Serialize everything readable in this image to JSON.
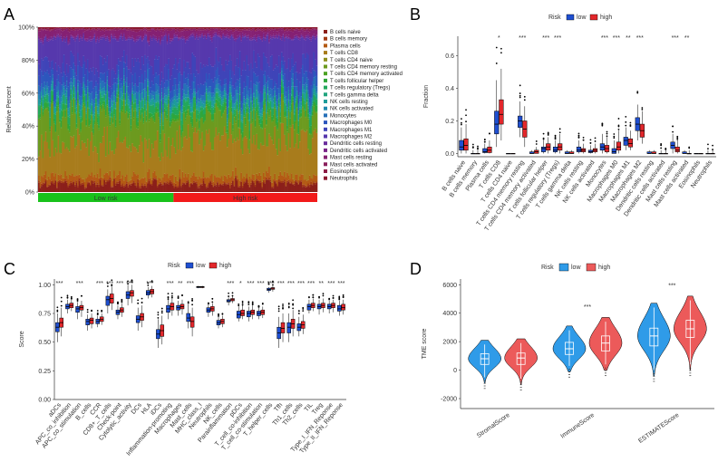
{
  "colors": {
    "low": "#1f4fd1",
    "high": "#e3272b",
    "low_violin": "#2f9be8",
    "high_violin": "#ec5a5a",
    "low_bar": "#19c21b",
    "high_bar": "#f21a1a"
  },
  "chart_data": [
    {
      "panel": "A",
      "type": "stacked-bar",
      "ylabel": "Relative Percent",
      "yticks": [
        "0%",
        "20%",
        "40%",
        "60%",
        "80%",
        "100%"
      ],
      "groups": [
        "Low risk",
        "High risk"
      ],
      "legend": [
        {
          "name": "B cells naive",
          "color": "#8b1f1a"
        },
        {
          "name": "B cells memory",
          "color": "#a23a15"
        },
        {
          "name": "Plasma cells",
          "color": "#b35a14"
        },
        {
          "name": "T cells CD8",
          "color": "#a87c1c"
        },
        {
          "name": "T cells CD4 naive",
          "color": "#8d8f1d"
        },
        {
          "name": "T cells CD4 memory resting",
          "color": "#6c9a1f"
        },
        {
          "name": "T cells CD4 memory activated",
          "color": "#4ca223"
        },
        {
          "name": "T cells follicular helper",
          "color": "#2fa63a"
        },
        {
          "name": "T cells regulatory (Tregs)",
          "color": "#23a85c"
        },
        {
          "name": "T cells gamma delta",
          "color": "#20a47e"
        },
        {
          "name": "NK cells resting",
          "color": "#1e9c9a"
        },
        {
          "name": "NK cells activated",
          "color": "#2189ad"
        },
        {
          "name": "Monocytes",
          "color": "#2670b8"
        },
        {
          "name": "Macrophages M0",
          "color": "#2d56bd"
        },
        {
          "name": "Macrophages M1",
          "color": "#3f44b8"
        },
        {
          "name": "Macrophages M2",
          "color": "#5638ad"
        },
        {
          "name": "Dendritic cells resting",
          "color": "#6a2d9c"
        },
        {
          "name": "Dendritic cells activated",
          "color": "#7a2588"
        },
        {
          "name": "Mast cells resting",
          "color": "#852173"
        },
        {
          "name": "Mast cells activated",
          "color": "#8a1f5c"
        },
        {
          "name": "Eosinophils",
          "color": "#8c1c45"
        },
        {
          "name": "Neutrophils",
          "color": "#8b1a30"
        }
      ],
      "mean_fractions": [
        0.05,
        0.01,
        0.04,
        0.2,
        0.0,
        0.18,
        0.01,
        0.03,
        0.04,
        0.01,
        0.03,
        0.02,
        0.04,
        0.06,
        0.09,
        0.16,
        0.01,
        0.01,
        0.04,
        0.01,
        0.001,
        0.01
      ]
    },
    {
      "panel": "B",
      "type": "boxplot",
      "ylabel": "Fraction",
      "legend_title": "Risk",
      "series_names": [
        "low",
        "high"
      ],
      "yticks": [
        "0.0",
        "0.2",
        "0.4",
        "0.6"
      ],
      "ylim": [
        -0.02,
        0.72
      ],
      "categories": [
        "B cells naive",
        "B cells memory",
        "Plasma cells",
        "T cells CD8",
        "T cells CD4 naive",
        "T cells CD4 memory resting",
        "T cells CD4 memory activated",
        "T cells follicular helper",
        "T cells regulatory (Tregs)",
        "T cells gamma delta",
        "NK cells resting",
        "NK cells activated",
        "Monocytes",
        "Macrophages M0",
        "Macrophages M1",
        "Macrophages M2",
        "Dendritic cells resting",
        "Dendritic cells activated",
        "Mast cells resting",
        "Mast cells activated",
        "Eosinophils",
        "Neutrophils"
      ],
      "significance": [
        "",
        "",
        "",
        "*",
        "",
        "***",
        "",
        "***",
        "***",
        "",
        "",
        "",
        "***",
        "***",
        "**",
        "***",
        "",
        "",
        "***",
        "**",
        "",
        ""
      ],
      "low": [
        [
          0.0,
          0.02,
          0.04,
          0.08,
          0.16
        ],
        [
          0.0,
          0.0,
          0.0,
          0.0,
          0.02
        ],
        [
          0.0,
          0.005,
          0.01,
          0.03,
          0.06
        ],
        [
          0.04,
          0.12,
          0.18,
          0.26,
          0.45
        ],
        [
          0.0,
          0.0,
          0.0,
          0.0,
          0.0
        ],
        [
          0.1,
          0.16,
          0.2,
          0.23,
          0.32
        ],
        [
          0.0,
          0.0,
          0.0,
          0.01,
          0.02
        ],
        [
          0.0,
          0.01,
          0.03,
          0.04,
          0.08
        ],
        [
          0.0,
          0.01,
          0.02,
          0.04,
          0.08
        ],
        [
          0.0,
          0.0,
          0.0,
          0.01,
          0.02
        ],
        [
          0.0,
          0.01,
          0.02,
          0.04,
          0.08
        ],
        [
          0.0,
          0.005,
          0.01,
          0.02,
          0.05
        ],
        [
          0.0,
          0.02,
          0.04,
          0.06,
          0.12
        ],
        [
          0.0,
          0.0,
          0.01,
          0.03,
          0.08
        ],
        [
          0.02,
          0.05,
          0.08,
          0.1,
          0.16
        ],
        [
          0.08,
          0.14,
          0.18,
          0.22,
          0.3
        ],
        [
          0.0,
          0.0,
          0.0,
          0.01,
          0.02
        ],
        [
          0.0,
          0.0,
          0.0,
          0.0,
          0.02
        ],
        [
          0.0,
          0.03,
          0.05,
          0.07,
          0.12
        ],
        [
          0.0,
          0.0,
          0.0,
          0.01,
          0.02
        ],
        [
          0.0,
          0.0,
          0.0,
          0.0,
          0.0
        ],
        [
          0.0,
          0.0,
          0.0,
          0.0,
          0.02
        ]
      ],
      "high": [
        [
          0.0,
          0.02,
          0.05,
          0.09,
          0.18
        ],
        [
          0.0,
          0.0,
          0.0,
          0.0,
          0.02
        ],
        [
          0.0,
          0.005,
          0.02,
          0.04,
          0.08
        ],
        [
          0.08,
          0.18,
          0.24,
          0.33,
          0.52
        ],
        [
          0.0,
          0.0,
          0.0,
          0.0,
          0.0
        ],
        [
          0.04,
          0.1,
          0.15,
          0.2,
          0.29
        ],
        [
          0.0,
          0.0,
          0.01,
          0.02,
          0.04
        ],
        [
          0.0,
          0.02,
          0.04,
          0.06,
          0.1
        ],
        [
          0.0,
          0.02,
          0.04,
          0.06,
          0.12
        ],
        [
          0.0,
          0.0,
          0.0,
          0.01,
          0.02
        ],
        [
          0.0,
          0.01,
          0.02,
          0.03,
          0.06
        ],
        [
          0.0,
          0.01,
          0.02,
          0.03,
          0.06
        ],
        [
          0.0,
          0.01,
          0.03,
          0.05,
          0.1
        ],
        [
          0.0,
          0.02,
          0.04,
          0.07,
          0.14
        ],
        [
          0.02,
          0.04,
          0.06,
          0.09,
          0.14
        ],
        [
          0.06,
          0.1,
          0.14,
          0.18,
          0.26
        ],
        [
          0.0,
          0.0,
          0.0,
          0.01,
          0.02
        ],
        [
          0.0,
          0.0,
          0.0,
          0.0,
          0.02
        ],
        [
          0.0,
          0.01,
          0.02,
          0.04,
          0.08
        ],
        [
          0.0,
          0.0,
          0.0,
          0.0,
          0.02
        ],
        [
          0.0,
          0.0,
          0.0,
          0.0,
          0.0
        ],
        [
          0.0,
          0.0,
          0.0,
          0.0,
          0.02
        ]
      ]
    },
    {
      "panel": "C",
      "type": "boxplot",
      "ylabel": "Score",
      "legend_title": "Risk",
      "series_names": [
        "low",
        "high"
      ],
      "yticks": [
        "0.00",
        "0.25",
        "0.50",
        "0.75",
        "1.00"
      ],
      "ylim": [
        0,
        1.05
      ],
      "categories": [
        "aDCs",
        "APC_co_inhibition",
        "APC_co_stimulation",
        "B_cells",
        "CCR",
        "CD8+_T_cells",
        "Check-point",
        "Cytolytic_activity",
        "DCs",
        "HLA",
        "iDCs",
        "Inflammation-promoting",
        "Macrophages",
        "Mast_cells",
        "MHC_class_I",
        "Neutrophils",
        "NK_cells",
        "Parainflammation",
        "pDCs",
        "T_cell_co-inhibition",
        "T_cell_co-stimulation",
        "T_helper_cells",
        "Tfh",
        "Th1_cells",
        "Th2_cells",
        "TIL",
        "Treg",
        "Type_I_IFN_Reponse",
        "Type_II_IFN_Reponse"
      ],
      "significance": [
        "***",
        "",
        "***",
        "",
        "***",
        "***",
        "***",
        "***",
        "",
        "***",
        "",
        "***",
        "**",
        "***",
        "",
        "",
        "",
        "***",
        "*",
        "***",
        "***",
        "***",
        "***",
        "***",
        "***",
        "***",
        "**",
        "***",
        "***"
      ],
      "low": [
        [
          0.5,
          0.59,
          0.63,
          0.67,
          0.75
        ],
        [
          0.75,
          0.79,
          0.81,
          0.83,
          0.87
        ],
        [
          0.7,
          0.76,
          0.79,
          0.81,
          0.85
        ],
        [
          0.6,
          0.65,
          0.68,
          0.7,
          0.74
        ],
        [
          0.63,
          0.66,
          0.68,
          0.7,
          0.73
        ],
        [
          0.75,
          0.82,
          0.87,
          0.9,
          0.96
        ],
        [
          0.7,
          0.74,
          0.76,
          0.78,
          0.82
        ],
        [
          0.82,
          0.88,
          0.91,
          0.94,
          1.0
        ],
        [
          0.6,
          0.67,
          0.7,
          0.73,
          0.8
        ],
        [
          0.88,
          0.91,
          0.93,
          0.95,
          0.98
        ],
        [
          0.45,
          0.53,
          0.57,
          0.61,
          0.7
        ],
        [
          0.7,
          0.76,
          0.79,
          0.82,
          0.87
        ],
        [
          0.73,
          0.78,
          0.8,
          0.82,
          0.86
        ],
        [
          0.62,
          0.68,
          0.71,
          0.75,
          0.83
        ],
        [
          0.97,
          0.975,
          0.98,
          0.985,
          0.99
        ],
        [
          0.72,
          0.76,
          0.78,
          0.8,
          0.83
        ],
        [
          0.62,
          0.65,
          0.67,
          0.69,
          0.72
        ],
        [
          0.82,
          0.85,
          0.86,
          0.87,
          0.89
        ],
        [
          0.68,
          0.71,
          0.74,
          0.77,
          0.81
        ],
        [
          0.68,
          0.72,
          0.75,
          0.77,
          0.81
        ],
        [
          0.7,
          0.73,
          0.75,
          0.77,
          0.8
        ],
        [
          0.93,
          0.95,
          0.96,
          0.97,
          0.98
        ],
        [
          0.45,
          0.53,
          0.58,
          0.63,
          0.72
        ],
        [
          0.5,
          0.58,
          0.63,
          0.67,
          0.75
        ],
        [
          0.55,
          0.6,
          0.63,
          0.66,
          0.72
        ],
        [
          0.75,
          0.78,
          0.81,
          0.83,
          0.87
        ],
        [
          0.74,
          0.79,
          0.81,
          0.83,
          0.87
        ],
        [
          0.75,
          0.79,
          0.81,
          0.83,
          0.86
        ],
        [
          0.73,
          0.77,
          0.79,
          0.82,
          0.86
        ]
      ],
      "high": [
        [
          0.55,
          0.63,
          0.67,
          0.71,
          0.8
        ],
        [
          0.77,
          0.8,
          0.82,
          0.84,
          0.87
        ],
        [
          0.72,
          0.78,
          0.8,
          0.82,
          0.86
        ],
        [
          0.62,
          0.66,
          0.69,
          0.71,
          0.75
        ],
        [
          0.65,
          0.68,
          0.7,
          0.72,
          0.75
        ],
        [
          0.78,
          0.84,
          0.88,
          0.92,
          0.98
        ],
        [
          0.72,
          0.76,
          0.78,
          0.8,
          0.84
        ],
        [
          0.84,
          0.9,
          0.93,
          0.95,
          1.0
        ],
        [
          0.63,
          0.69,
          0.72,
          0.75,
          0.82
        ],
        [
          0.89,
          0.92,
          0.94,
          0.96,
          0.99
        ],
        [
          0.48,
          0.55,
          0.6,
          0.65,
          0.73
        ],
        [
          0.73,
          0.78,
          0.81,
          0.84,
          0.88
        ],
        [
          0.74,
          0.79,
          0.81,
          0.83,
          0.87
        ],
        [
          0.55,
          0.63,
          0.68,
          0.72,
          0.8
        ],
        [
          0.97,
          0.975,
          0.98,
          0.985,
          0.99
        ],
        [
          0.73,
          0.77,
          0.79,
          0.81,
          0.84
        ],
        [
          0.63,
          0.66,
          0.68,
          0.7,
          0.73
        ],
        [
          0.84,
          0.86,
          0.87,
          0.88,
          0.9
        ],
        [
          0.7,
          0.73,
          0.75,
          0.78,
          0.82
        ],
        [
          0.7,
          0.74,
          0.76,
          0.78,
          0.82
        ],
        [
          0.71,
          0.74,
          0.76,
          0.78,
          0.81
        ],
        [
          0.94,
          0.96,
          0.97,
          0.975,
          0.99
        ],
        [
          0.5,
          0.58,
          0.62,
          0.67,
          0.75
        ],
        [
          0.55,
          0.62,
          0.66,
          0.7,
          0.78
        ],
        [
          0.57,
          0.62,
          0.65,
          0.68,
          0.74
        ],
        [
          0.77,
          0.8,
          0.82,
          0.84,
          0.88
        ],
        [
          0.76,
          0.8,
          0.82,
          0.84,
          0.88
        ],
        [
          0.76,
          0.8,
          0.82,
          0.84,
          0.87
        ],
        [
          0.74,
          0.78,
          0.8,
          0.83,
          0.87
        ]
      ]
    },
    {
      "panel": "D",
      "type": "violin",
      "ylabel": "TME score",
      "legend_title": "Risk",
      "series_names": [
        "low",
        "high"
      ],
      "yticks": [
        "-2000",
        "0",
        "2000",
        "4000",
        "6000"
      ],
      "ylim": [
        -2700,
        6400
      ],
      "categories": [
        "StromalScore",
        "ImmuneScore",
        "ESTIMATEScore"
      ],
      "significance": [
        "",
        "***",
        "***"
      ],
      "low": [
        [
          -500,
          400,
          800,
          1150,
          1800
        ],
        [
          300,
          1100,
          1500,
          1950,
          2800
        ],
        [
          0,
          1700,
          2400,
          2950,
          4400
        ]
      ],
      "high": [
        [
          -600,
          400,
          850,
          1200,
          1900
        ],
        [
          400,
          1350,
          1900,
          2400,
          3400
        ],
        [
          400,
          2300,
          2900,
          3500,
          4900
        ]
      ]
    }
  ]
}
